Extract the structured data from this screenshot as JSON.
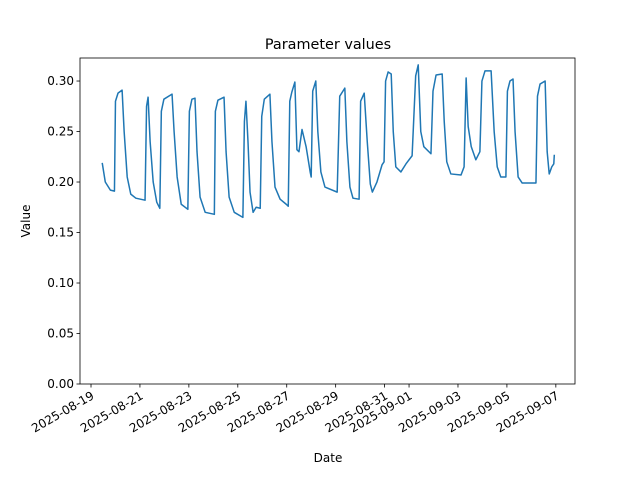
{
  "chart_data": {
    "type": "line",
    "title": "Parameter values",
    "x_label": "Date",
    "y_label": "Value",
    "color": "#1f77b4",
    "x": [
      "2025-08-19T11:00",
      "2025-08-19T14:00",
      "2025-08-19T19:00",
      "2025-08-19T23:00",
      "2025-08-20T00:00",
      "2025-08-20T02:30",
      "2025-08-20T06:30",
      "2025-08-20T08:30",
      "2025-08-20T11:30",
      "2025-08-20T15:00",
      "2025-08-20T20:00",
      "2025-08-21T05:00",
      "2025-08-21T06:30",
      "2025-08-21T08:00",
      "2025-08-21T10:00",
      "2025-08-21T13:00",
      "2025-08-21T16:30",
      "2025-08-21T19:30",
      "2025-08-21T21:00",
      "2025-08-21T23:30",
      "2025-08-22T07:30",
      "2025-08-22T09:30",
      "2025-08-22T12:30",
      "2025-08-22T16:30",
      "2025-08-22T23:00",
      "2025-08-23T00:30",
      "2025-08-23T03:00",
      "2025-08-23T06:00",
      "2025-08-23T08:00",
      "2025-08-23T11:00",
      "2025-08-23T16:00",
      "2025-08-24T01:00",
      "2025-08-24T02:00",
      "2025-08-24T04:30",
      "2025-08-24T10:30",
      "2025-08-24T12:30",
      "2025-08-24T15:30",
      "2025-08-24T20:30",
      "2025-08-25T05:00",
      "2025-08-25T06:30",
      "2025-08-25T08:00",
      "2025-08-25T10:00",
      "2025-08-25T12:00",
      "2025-08-25T15:00",
      "2025-08-25T18:00",
      "2025-08-25T22:00",
      "2025-08-25T23:30",
      "2025-08-26T02:00",
      "2025-08-26T07:30",
      "2025-08-26T09:30",
      "2025-08-26T12:30",
      "2025-08-26T17:30",
      "2025-08-26T23:30",
      "2025-08-27T01:30",
      "2025-08-27T03:00",
      "2025-08-27T05:00",
      "2025-08-27T08:00",
      "2025-08-27T10:00",
      "2025-08-27T12:00",
      "2025-08-27T15:00",
      "2025-08-27T19:00",
      "2025-08-27T23:00",
      "2025-08-28T00:00",
      "2025-08-28T01:30",
      "2025-08-28T04:30",
      "2025-08-28T06:30",
      "2025-08-28T09:30",
      "2025-08-28T13:30",
      "2025-08-29T01:30",
      "2025-08-29T04:00",
      "2025-08-29T09:00",
      "2025-08-29T11:00",
      "2025-08-29T14:00",
      "2025-08-29T17:00",
      "2025-08-29T23:00",
      "2025-08-30T00:30",
      "2025-08-30T04:00",
      "2025-08-30T07:00",
      "2025-08-30T10:00",
      "2025-08-30T12:00",
      "2025-08-30T16:30",
      "2025-08-30T21:30",
      "2025-08-30T23:30",
      "2025-08-31T01:00",
      "2025-08-31T03:30",
      "2025-08-31T06:30",
      "2025-08-31T08:30",
      "2025-08-31T11:00",
      "2025-08-31T16:00",
      "2025-08-31T21:00",
      "2025-09-01T03:00",
      "2025-09-01T06:30",
      "2025-09-01T09:00",
      "2025-09-01T11:30",
      "2025-09-01T14:30",
      "2025-09-01T21:30",
      "2025-09-01T23:30",
      "2025-09-02T02:30",
      "2025-09-02T08:30",
      "2025-09-02T10:30",
      "2025-09-02T13:00",
      "2025-09-02T17:00",
      "2025-09-03T03:00",
      "2025-09-03T06:00",
      "2025-09-03T08:00",
      "2025-09-03T10:00",
      "2025-09-03T13:00",
      "2025-09-03T17:30",
      "2025-09-03T21:30",
      "2025-09-03T23:30",
      "2025-09-04T02:30",
      "2025-09-04T08:30",
      "2025-09-04T11:30",
      "2025-09-04T14:30",
      "2025-09-04T18:00",
      "2025-09-04T23:00",
      "2025-09-05T00:30",
      "2025-09-05T03:00",
      "2025-09-05T06:00",
      "2025-09-05T08:00",
      "2025-09-05T11:00",
      "2025-09-05T15:00",
      "2025-09-06T04:30",
      "2025-09-06T06:00",
      "2025-09-06T08:30",
      "2025-09-06T13:30",
      "2025-09-06T15:30",
      "2025-09-06T17:30",
      "2025-09-06T20:00",
      "2025-09-06T22:00",
      "2025-09-06T22:30"
    ],
    "values": [
      0.219,
      0.2,
      0.192,
      0.191,
      0.28,
      0.288,
      0.291,
      0.25,
      0.205,
      0.188,
      0.184,
      0.182,
      0.275,
      0.284,
      0.24,
      0.2,
      0.18,
      0.174,
      0.27,
      0.282,
      0.287,
      0.25,
      0.205,
      0.178,
      0.173,
      0.27,
      0.282,
      0.283,
      0.23,
      0.185,
      0.17,
      0.168,
      0.27,
      0.281,
      0.284,
      0.23,
      0.185,
      0.17,
      0.165,
      0.26,
      0.28,
      0.24,
      0.19,
      0.17,
      0.175,
      0.174,
      0.265,
      0.282,
      0.287,
      0.24,
      0.195,
      0.183,
      0.178,
      0.176,
      0.28,
      0.289,
      0.299,
      0.232,
      0.23,
      0.252,
      0.235,
      0.21,
      0.205,
      0.29,
      0.3,
      0.25,
      0.21,
      0.195,
      0.19,
      0.285,
      0.293,
      0.24,
      0.195,
      0.184,
      0.183,
      0.28,
      0.288,
      0.24,
      0.198,
      0.19,
      0.2,
      0.217,
      0.22,
      0.3,
      0.309,
      0.307,
      0.25,
      0.215,
      0.21,
      0.218,
      0.226,
      0.305,
      0.316,
      0.25,
      0.235,
      0.228,
      0.29,
      0.306,
      0.307,
      0.26,
      0.22,
      0.208,
      0.207,
      0.215,
      0.303,
      0.255,
      0.235,
      0.222,
      0.23,
      0.3,
      0.31,
      0.31,
      0.25,
      0.215,
      0.205,
      0.205,
      0.29,
      0.3,
      0.302,
      0.25,
      0.205,
      0.199,
      0.199,
      0.285,
      0.297,
      0.3,
      0.23,
      0.208,
      0.215,
      0.218,
      0.227
    ],
    "xlim": [
      "2025-08-18T13:12",
      "2025-09-07T18:48"
    ],
    "xticks": [
      "2025-08-19",
      "2025-08-21",
      "2025-08-23",
      "2025-08-25",
      "2025-08-27",
      "2025-08-29",
      "2025-08-31",
      "2025-09-01",
      "2025-09-03",
      "2025-09-05",
      "2025-09-07"
    ],
    "ylim": [
      0,
      0.3228
    ],
    "yticks": [
      {
        "value": 0,
        "label": "0.00"
      },
      {
        "value": 0.05,
        "label": "0.05"
      },
      {
        "value": 0.1,
        "label": "0.10"
      },
      {
        "value": 0.15,
        "label": "0.15"
      },
      {
        "value": 0.2,
        "label": "0.20"
      },
      {
        "value": 0.25,
        "label": "0.25"
      },
      {
        "value": 0.3,
        "label": "0.30"
      }
    ]
  }
}
